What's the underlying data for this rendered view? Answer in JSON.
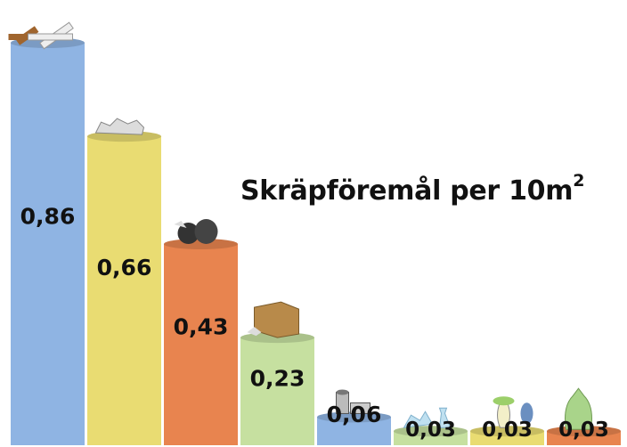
{
  "chart_data": {
    "type": "bar",
    "title": "Skräpföremål per 10m",
    "title_superscript": "2",
    "categories": [
      "cigarette-butt-icon",
      "plastic-bottle-icon",
      "trash-bag-icon",
      "cardboard-box-icon",
      "tin-can-icon",
      "glass-bottle-icon",
      "apple-core-icon",
      "green-bag-icon"
    ],
    "values": [
      0.86,
      0.66,
      0.43,
      0.23,
      0.06,
      0.03,
      0.03,
      0.03
    ],
    "value_labels": [
      "0,86",
      "0,66",
      "0,43",
      "0,23",
      "0,06",
      "0,03",
      "0,03",
      "0,03"
    ],
    "colors": [
      "#8fb4e3",
      "#e9dc72",
      "#e8844f",
      "#c6e0a0",
      "#8fb4e3",
      "#c6e0a0",
      "#e9dc72",
      "#e8844f"
    ],
    "ylim": [
      0,
      0.86
    ],
    "grid": false,
    "legend": "none"
  }
}
